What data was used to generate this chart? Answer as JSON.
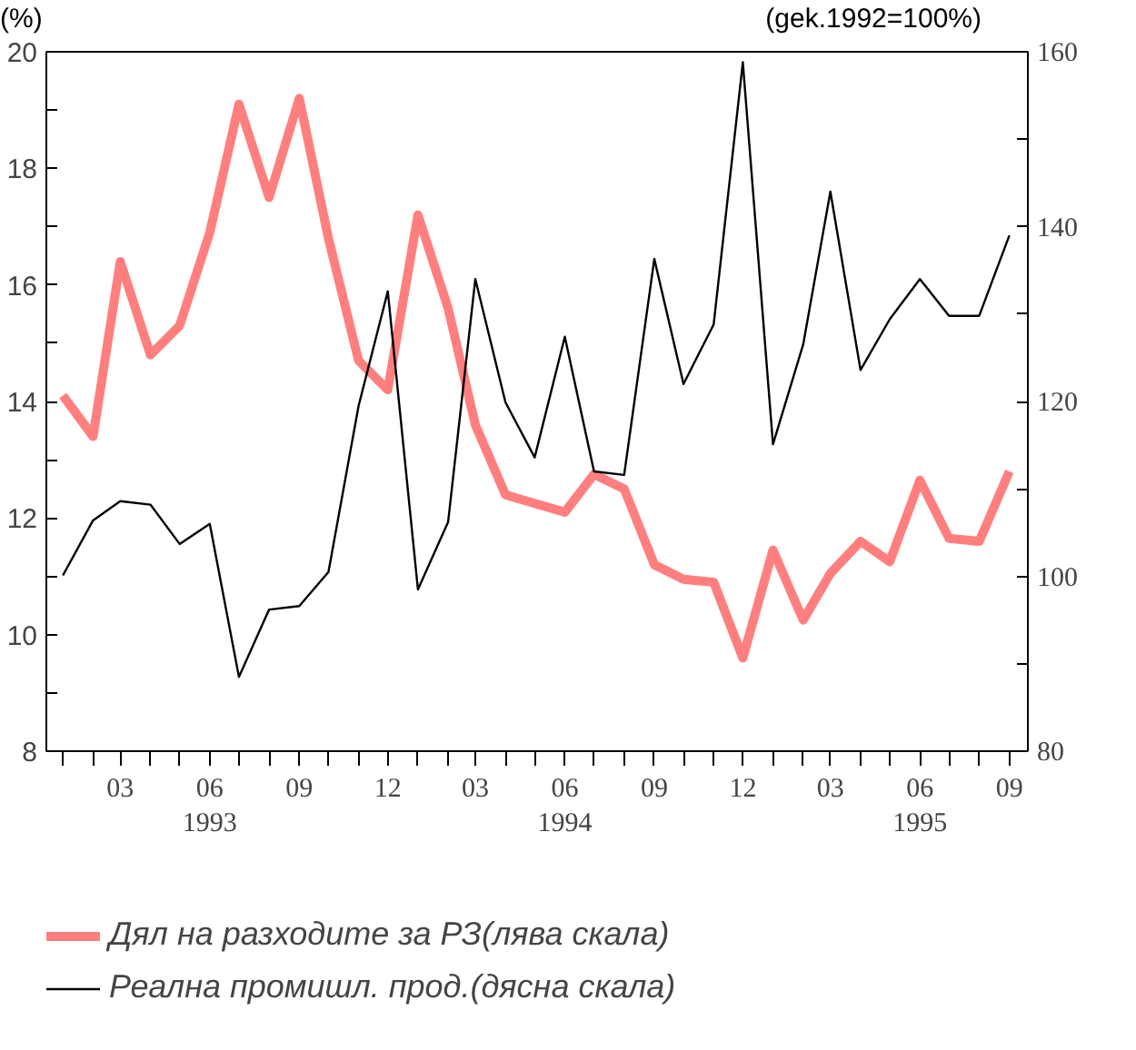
{
  "chart_data": {
    "type": "line",
    "ylabel": "(%)",
    "y2label": "(gek.1992=100%)",
    "x": [
      "1993-01",
      "1993-02",
      "1993-03",
      "1993-04",
      "1993-05",
      "1993-06",
      "1993-07",
      "1993-08",
      "1993-09",
      "1993-10",
      "1993-11",
      "1993-12",
      "1994-01",
      "1994-02",
      "1994-03",
      "1994-04",
      "1994-05",
      "1994-06",
      "1994-07",
      "1994-08",
      "1994-09",
      "1994-10",
      "1994-11",
      "1994-12",
      "1995-01",
      "1995-02",
      "1995-03",
      "1995-04",
      "1995-05",
      "1995-06",
      "1995-07",
      "1995-08",
      "1995-09"
    ],
    "series": [
      {
        "name": "Дял на разходите за РЗ(лява скала)",
        "color": "#ff7f7f",
        "values": [
          14.1,
          13.4,
          16.4,
          14.8,
          15.3,
          16.9,
          19.1,
          17.5,
          19.2,
          16.8,
          14.7,
          14.2,
          17.2,
          15.6,
          13.6,
          12.4,
          12.25,
          12.1,
          12.75,
          12.5,
          11.2,
          10.95,
          10.9,
          9.6,
          11.45,
          10.25,
          11.05,
          11.6,
          11.25,
          12.65,
          11.65,
          11.6,
          12.8
        ]
      },
      {
        "name": "Реална промишл. прод.(дясна скала)",
        "color": "#000000",
        "axis": "y2",
        "values": [
          100.1,
          106.4,
          108.6,
          108.2,
          103.7,
          106,
          88.5,
          96.2,
          96.6,
          100.5,
          119.5,
          132.6,
          98.5,
          106.2,
          134,
          119.9,
          113.6,
          127.4,
          112,
          111.6,
          136.3,
          122,
          128.8,
          158.8,
          115.1,
          126.5,
          144,
          123.6,
          129.4,
          134,
          129.8,
          129.8,
          139
        ]
      }
    ],
    "xlim": [
      "1992-12-15",
      "1995-09-20"
    ],
    "xticks": [
      {
        "value": "1993-01",
        "label": null
      },
      {
        "value": "1993-02",
        "label": null
      },
      {
        "value": "1993-03",
        "label": "03"
      },
      {
        "value": "1993-04",
        "label": null
      },
      {
        "value": "1993-05",
        "label": null
      },
      {
        "value": "1993-06",
        "label": "06\n1993"
      },
      {
        "value": "1993-07",
        "label": null
      },
      {
        "value": "1993-08",
        "label": null
      },
      {
        "value": "1993-09",
        "label": "09"
      },
      {
        "value": "1993-10",
        "label": null
      },
      {
        "value": "1993-11",
        "label": null
      },
      {
        "value": "1993-12",
        "label": "12"
      },
      {
        "value": "1994-01",
        "label": null
      },
      {
        "value": "1994-02",
        "label": null
      },
      {
        "value": "1994-03",
        "label": "03"
      },
      {
        "value": "1994-04",
        "label": null
      },
      {
        "value": "1994-05",
        "label": null
      },
      {
        "value": "1994-06",
        "label": "06\n1994"
      },
      {
        "value": "1994-07",
        "label": null
      },
      {
        "value": "1994-08",
        "label": null
      },
      {
        "value": "1994-09",
        "label": "09"
      },
      {
        "value": "1994-10",
        "label": null
      },
      {
        "value": "1994-11",
        "label": null
      },
      {
        "value": "1994-12",
        "label": "12"
      },
      {
        "value": "1995-01",
        "label": null
      },
      {
        "value": "1995-02",
        "label": null
      },
      {
        "value": "1995-03",
        "label": "03"
      },
      {
        "value": "1995-04",
        "label": null
      },
      {
        "value": "1995-05",
        "label": null
      },
      {
        "value": "1995-06",
        "label": "06\n1995"
      },
      {
        "value": "1995-07",
        "label": null
      },
      {
        "value": "1995-08",
        "label": null
      },
      {
        "value": "1995-09",
        "label": "09"
      }
    ],
    "ylim": [
      8,
      20
    ],
    "yticks": [
      8,
      {
        "value": 9,
        "label": null
      },
      10,
      {
        "value": 11,
        "label": null
      },
      12,
      {
        "value": 13,
        "label": null
      },
      14,
      {
        "value": 15,
        "label": null
      },
      16,
      {
        "value": 17,
        "label": null
      },
      18,
      {
        "value": 19,
        "label": null
      },
      20
    ],
    "y2lim": [
      80,
      160
    ],
    "y2ticks": [
      80,
      {
        "value": 90,
        "label": null
      },
      100,
      {
        "value": 110,
        "label": null
      },
      120,
      {
        "value": 130,
        "label": null
      },
      140,
      {
        "value": 150,
        "label": null
      },
      160
    ],
    "grid": false,
    "legend": "bottom",
    "marker": "none",
    "line_style": "solid"
  }
}
